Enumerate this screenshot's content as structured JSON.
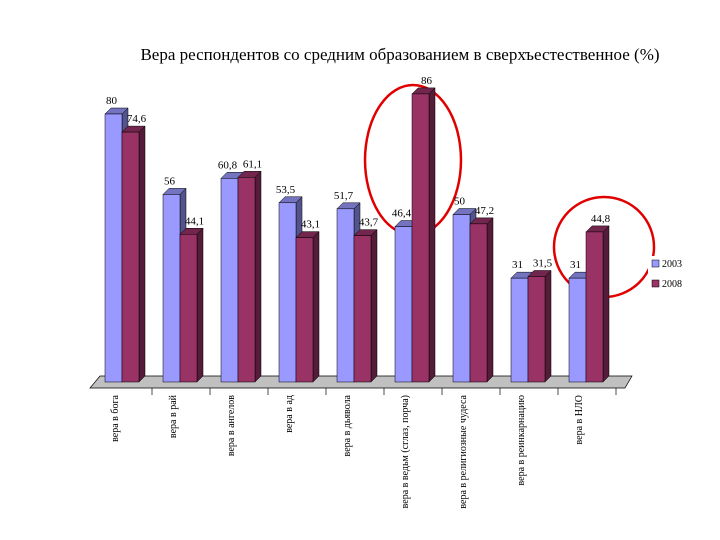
{
  "chart_data": {
    "type": "bar",
    "title": "Вера респондентов со средним образованием в сверхъестественное (%)",
    "categories": [
      "вера в бога",
      "вера в рай",
      "вера в ангелов",
      "вера в ад",
      "вера в дьявола",
      "вера в ведьм (сглаз, порча)",
      "вера в религиозные чудеса",
      "вера в реинкарнацию",
      "вера в НЛО"
    ],
    "series": [
      {
        "name": "2003",
        "color": "#9999ff",
        "values": [
          80,
          56,
          60.8,
          53.5,
          51.7,
          46.4,
          50,
          31,
          31
        ],
        "value_labels": [
          "80",
          "56",
          "60,8",
          "53,5",
          "51,7",
          "46,4",
          "50",
          "31",
          "31"
        ]
      },
      {
        "name": "2008",
        "color": "#993366",
        "values": [
          74.6,
          44.1,
          61.1,
          43.1,
          43.7,
          86,
          47.2,
          31.5,
          44.8
        ],
        "value_labels": [
          "74,6",
          "44,1",
          "61,1",
          "43,1",
          "43,7",
          "86",
          "47,2",
          "31,5",
          "44,8"
        ]
      }
    ]
  }
}
